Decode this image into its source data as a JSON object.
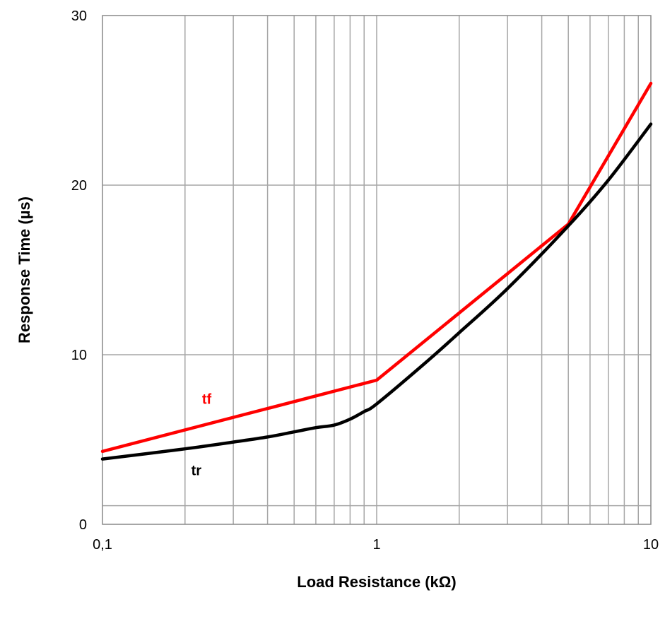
{
  "chart_data": {
    "type": "line",
    "xlabel": "Load Resistance (kΩ)",
    "ylabel": "Response Time (µs)",
    "x_scale": "log",
    "xlim": [
      0.1,
      10
    ],
    "ylim": [
      0,
      30
    ],
    "x_ticks": [
      {
        "value": 0.1,
        "label": "0,1"
      },
      {
        "value": 1,
        "label": "1"
      },
      {
        "value": 10,
        "label": "10"
      }
    ],
    "y_ticks": [
      {
        "value": 0,
        "label": "0"
      },
      {
        "value": 10,
        "label": "10"
      },
      {
        "value": 20,
        "label": "20"
      },
      {
        "value": 30,
        "label": "30"
      }
    ],
    "minor_y_line": 1.1,
    "grid": true,
    "series": [
      {
        "name": "tf",
        "color": "#ff0000",
        "label_at": {
          "x": 0.24,
          "y": 7.1
        },
        "points": [
          [
            0.1,
            4.3
          ],
          [
            1,
            8.5
          ],
          [
            5,
            17.7
          ],
          [
            10,
            26
          ]
        ]
      },
      {
        "name": "tr",
        "color": "#000000",
        "label_at": {
          "x": 0.22,
          "y": 2.9
        },
        "points": [
          [
            0.1,
            3.85
          ],
          [
            0.2,
            4.45
          ],
          [
            0.3,
            4.85
          ],
          [
            0.4,
            5.15
          ],
          [
            0.5,
            5.45
          ],
          [
            0.6,
            5.7
          ],
          [
            0.7,
            5.85
          ],
          [
            0.8,
            6.2
          ],
          [
            0.9,
            6.65
          ],
          [
            1,
            7.1
          ],
          [
            1.5,
            9.5
          ],
          [
            2,
            11.3
          ],
          [
            3,
            13.9
          ],
          [
            5,
            17.6
          ],
          [
            7,
            20.3
          ],
          [
            10,
            23.6
          ]
        ]
      }
    ]
  }
}
